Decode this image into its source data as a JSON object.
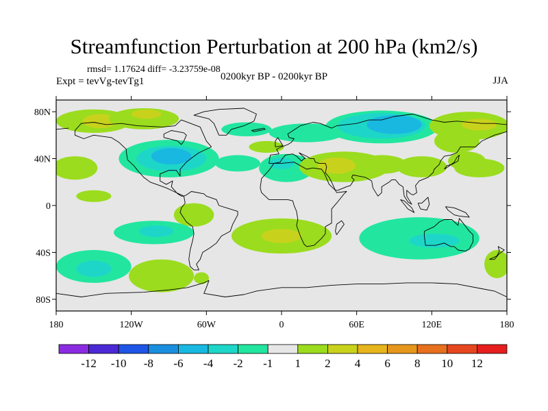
{
  "title": "Streamfunction Perturbation at 200 hPa (km2/s)",
  "stats_text": "rmsd= 1.17624 diff= -3.23759e-08",
  "expt_text": "Expt = tevVg-tevTg1",
  "period_text": "0200kyr BP - 0200kyr BP",
  "season_text": "JJA",
  "map": {
    "lon_range": [
      -180,
      180
    ],
    "lat_range": [
      -90,
      90
    ],
    "background_color": "#e6e6e6",
    "coast_color": "#000000"
  },
  "lat_ticks": [
    {
      "lat": 80,
      "label": "80N"
    },
    {
      "lat": 40,
      "label": "40N"
    },
    {
      "lat": 0,
      "label": "0"
    },
    {
      "lat": -40,
      "label": "40S"
    },
    {
      "lat": -80,
      "label": "80S"
    }
  ],
  "lon_ticks": [
    {
      "lon": -180,
      "label": "180"
    },
    {
      "lon": -120,
      "label": "120W"
    },
    {
      "lon": -60,
      "label": "60W"
    },
    {
      "lon": 0,
      "label": "0"
    },
    {
      "lon": 60,
      "label": "60E"
    },
    {
      "lon": 120,
      "label": "120E"
    },
    {
      "lon": 180,
      "label": "180"
    }
  ],
  "colorbar": {
    "colors": [
      "#8a2be2",
      "#4b28d6",
      "#1f55e6",
      "#1a8fe0",
      "#19b8e0",
      "#1ed6c8",
      "#22e6a0",
      "#e6e6e6",
      "#9bdc1e",
      "#c8d21c",
      "#e6b41c",
      "#e6961c",
      "#e6701e",
      "#e6461e",
      "#e61e1e"
    ],
    "labels": [
      "-12",
      "-10",
      "-8",
      "-6",
      "-4",
      "-2",
      "-1",
      "1",
      "2",
      "4",
      "6",
      "8",
      "10",
      "12"
    ]
  },
  "anomalies": [
    {
      "lon": -150,
      "lat": 72,
      "rx": 30,
      "ry": 10,
      "level": 2
    },
    {
      "lon": -145,
      "lat": 72,
      "rx": 14,
      "ry": 6,
      "level": 4
    },
    {
      "lon": -110,
      "lat": 74,
      "rx": 28,
      "ry": 9,
      "level": 2
    },
    {
      "lon": -108,
      "lat": 78,
      "rx": 12,
      "ry": 4,
      "level": 4
    },
    {
      "lon": -28,
      "lat": 65,
      "rx": 20,
      "ry": 6,
      "level": -1
    },
    {
      "lon": -12,
      "lat": 50,
      "rx": 14,
      "ry": 5,
      "level": 2
    },
    {
      "lon": 20,
      "lat": 62,
      "rx": 30,
      "ry": 8,
      "level": -1
    },
    {
      "lon": 80,
      "lat": 67,
      "rx": 45,
      "ry": 14,
      "level": -1
    },
    {
      "lon": 80,
      "lat": 68,
      "rx": 35,
      "ry": 11,
      "level": -2
    },
    {
      "lon": 90,
      "lat": 69,
      "rx": 22,
      "ry": 8,
      "level": -4
    },
    {
      "lon": 150,
      "lat": 68,
      "rx": 32,
      "ry": 12,
      "level": 2
    },
    {
      "lon": 158,
      "lat": 69,
      "rx": 14,
      "ry": 5,
      "level": 4
    },
    {
      "lon": 140,
      "lat": 55,
      "rx": 18,
      "ry": 10,
      "level": 2
    },
    {
      "lon": -90,
      "lat": 40,
      "rx": 40,
      "ry": 16,
      "level": -1
    },
    {
      "lon": -88,
      "lat": 40,
      "rx": 28,
      "ry": 11,
      "level": -2
    },
    {
      "lon": -88,
      "lat": 42,
      "rx": 16,
      "ry": 7,
      "level": -4
    },
    {
      "lon": -165,
      "lat": 32,
      "rx": 18,
      "ry": 10,
      "level": 2
    },
    {
      "lon": 4,
      "lat": 32,
      "rx": 22,
      "ry": 12,
      "level": -1
    },
    {
      "lon": 0,
      "lat": 36,
      "rx": 10,
      "ry": 5,
      "level": -2
    },
    {
      "lon": -35,
      "lat": 36,
      "rx": 18,
      "ry": 7,
      "level": -1
    },
    {
      "lon": 50,
      "lat": 33,
      "rx": 36,
      "ry": 13,
      "level": 2
    },
    {
      "lon": 44,
      "lat": 34,
      "rx": 15,
      "ry": 7,
      "level": 4
    },
    {
      "lon": 80,
      "lat": 35,
      "rx": 20,
      "ry": 8,
      "level": 2
    },
    {
      "lon": 112,
      "lat": 33,
      "rx": 20,
      "ry": 9,
      "level": 2
    },
    {
      "lon": 148,
      "lat": 38,
      "rx": 15,
      "ry": 8,
      "level": 2
    },
    {
      "lon": 158,
      "lat": 32,
      "rx": 20,
      "ry": 8,
      "level": 2
    },
    {
      "lon": -150,
      "lat": 8,
      "rx": 14,
      "ry": 5,
      "level": 2
    },
    {
      "lon": -70,
      "lat": -8,
      "rx": 16,
      "ry": 10,
      "level": 2
    },
    {
      "lon": -102,
      "lat": -23,
      "rx": 32,
      "ry": 10,
      "level": -1
    },
    {
      "lon": -100,
      "lat": -22,
      "rx": 14,
      "ry": 5,
      "level": -2
    },
    {
      "lon": 0,
      "lat": -26,
      "rx": 40,
      "ry": 15,
      "level": 2
    },
    {
      "lon": 0,
      "lat": -26,
      "rx": 16,
      "ry": 6,
      "level": 4
    },
    {
      "lon": 110,
      "lat": -28,
      "rx": 48,
      "ry": 18,
      "level": -1
    },
    {
      "lon": 122,
      "lat": -30,
      "rx": 20,
      "ry": 6,
      "level": -2
    },
    {
      "lon": 172,
      "lat": -50,
      "rx": 10,
      "ry": 12,
      "level": 2
    },
    {
      "lon": -150,
      "lat": -52,
      "rx": 30,
      "ry": 14,
      "level": -1
    },
    {
      "lon": -150,
      "lat": -54,
      "rx": 14,
      "ry": 7,
      "level": -2
    },
    {
      "lon": -96,
      "lat": -60,
      "rx": 26,
      "ry": 14,
      "level": 2
    },
    {
      "lon": -64,
      "lat": -62,
      "rx": 6,
      "ry": 5,
      "level": 2
    }
  ],
  "coastlines": [
    [
      [
        -165,
        64
      ],
      [
        -160,
        70
      ],
      [
        -150,
        71
      ],
      [
        -140,
        69
      ],
      [
        -128,
        70
      ],
      [
        -115,
        68
      ],
      [
        -95,
        67
      ],
      [
        -85,
        68
      ],
      [
        -80,
        73
      ],
      [
        -65,
        67
      ],
      [
        -60,
        55
      ],
      [
        -56,
        50
      ],
      [
        -66,
        45
      ],
      [
        -70,
        42
      ],
      [
        -76,
        37
      ],
      [
        -81,
        31
      ],
      [
        -81,
        25
      ],
      [
        -84,
        30
      ],
      [
        -90,
        30
      ],
      [
        -97,
        27
      ],
      [
        -97,
        21
      ],
      [
        -92,
        18
      ],
      [
        -87,
        21
      ],
      [
        -88,
        16
      ],
      [
        -83,
        10
      ],
      [
        -80,
        8
      ],
      [
        -78,
        8
      ],
      [
        -86,
        12
      ],
      [
        -92,
        15
      ],
      [
        -105,
        20
      ],
      [
        -110,
        24
      ],
      [
        -115,
        30
      ],
      [
        -118,
        34
      ],
      [
        -123,
        39
      ],
      [
        -124,
        46
      ],
      [
        -124,
        48
      ],
      [
        -130,
        54
      ],
      [
        -136,
        58
      ],
      [
        -150,
        60
      ],
      [
        -158,
        57
      ],
      [
        -165,
        60
      ],
      [
        -165,
        64
      ]
    ],
    [
      [
        -94,
        58
      ],
      [
        -90,
        57
      ],
      [
        -83,
        55
      ],
      [
        -80,
        52
      ],
      [
        -78,
        55
      ],
      [
        -76,
        60
      ],
      [
        -78,
        62
      ],
      [
        -88,
        64
      ],
      [
        -94,
        61
      ],
      [
        -94,
        58
      ]
    ],
    [
      [
        -78,
        8
      ],
      [
        -77,
        2
      ],
      [
        -80,
        -2
      ],
      [
        -81,
        -6
      ],
      [
        -76,
        -14
      ],
      [
        -71,
        -18
      ],
      [
        -70,
        -24
      ],
      [
        -71,
        -30
      ],
      [
        -73,
        -38
      ],
      [
        -74,
        -46
      ],
      [
        -73,
        -52
      ],
      [
        -70,
        -55
      ],
      [
        -66,
        -55
      ],
      [
        -68,
        -50
      ],
      [
        -65,
        -46
      ],
      [
        -63,
        -40
      ],
      [
        -57,
        -36
      ],
      [
        -52,
        -32
      ],
      [
        -48,
        -26
      ],
      [
        -41,
        -22
      ],
      [
        -39,
        -16
      ],
      [
        -35,
        -8
      ],
      [
        -35,
        -5
      ],
      [
        -44,
        -2
      ],
      [
        -50,
        0
      ],
      [
        -52,
        5
      ],
      [
        -60,
        8
      ],
      [
        -62,
        10
      ],
      [
        -72,
        12
      ],
      [
        -76,
        9
      ],
      [
        -78,
        8
      ]
    ],
    [
      [
        -50,
        60
      ],
      [
        -44,
        60
      ],
      [
        -40,
        65
      ],
      [
        -30,
        68
      ],
      [
        -22,
        72
      ],
      [
        -20,
        78
      ],
      [
        -30,
        83
      ],
      [
        -50,
        82
      ],
      [
        -62,
        80
      ],
      [
        -70,
        77
      ],
      [
        -58,
        74
      ],
      [
        -54,
        70
      ],
      [
        -52,
        65
      ],
      [
        -50,
        60
      ]
    ],
    [
      [
        -17,
        15
      ],
      [
        -16,
        11
      ],
      [
        -10,
        5
      ],
      [
        -5,
        5
      ],
      [
        5,
        5
      ],
      [
        9,
        4
      ],
      [
        10,
        0
      ],
      [
        12,
        -5
      ],
      [
        13,
        -12
      ],
      [
        12,
        -17
      ],
      [
        15,
        -26
      ],
      [
        18,
        -33
      ],
      [
        20,
        -35
      ],
      [
        26,
        -34
      ],
      [
        32,
        -28
      ],
      [
        35,
        -24
      ],
      [
        35,
        -18
      ],
      [
        40,
        -15
      ],
      [
        40,
        -10
      ],
      [
        40,
        -3
      ],
      [
        44,
        2
      ],
      [
        50,
        10
      ],
      [
        52,
        12
      ],
      [
        44,
        11
      ],
      [
        43,
        13
      ],
      [
        38,
        18
      ],
      [
        34,
        28
      ],
      [
        32,
        31
      ],
      [
        25,
        32
      ],
      [
        20,
        31
      ],
      [
        10,
        37
      ],
      [
        0,
        36
      ],
      [
        -6,
        36
      ],
      [
        -10,
        30
      ],
      [
        -16,
        23
      ],
      [
        -17,
        15
      ]
    ],
    [
      [
        44,
        -25
      ],
      [
        50,
        -16
      ],
      [
        48,
        -13
      ],
      [
        44,
        -16
      ],
      [
        43,
        -22
      ],
      [
        44,
        -25
      ]
    ],
    [
      [
        -10,
        36
      ],
      [
        -9,
        43
      ],
      [
        -2,
        44
      ],
      [
        -4,
        48
      ],
      [
        0,
        50
      ],
      [
        5,
        52
      ],
      [
        8,
        54
      ],
      [
        10,
        57
      ],
      [
        6,
        58
      ],
      [
        5,
        61
      ],
      [
        15,
        68
      ],
      [
        25,
        71
      ],
      [
        31,
        70
      ],
      [
        40,
        66
      ],
      [
        44,
        68
      ],
      [
        60,
        70
      ],
      [
        70,
        73
      ],
      [
        80,
        73
      ],
      [
        90,
        76
      ],
      [
        105,
        78
      ],
      [
        120,
        73
      ],
      [
        130,
        71
      ],
      [
        140,
        72
      ],
      [
        160,
        70
      ],
      [
        170,
        70
      ],
      [
        180,
        69
      ]
    ],
    [
      [
        -170,
        66
      ],
      [
        -180,
        65
      ]
    ],
    [
      [
        180,
        63
      ],
      [
        170,
        60
      ],
      [
        160,
        55
      ],
      [
        155,
        50
      ],
      [
        143,
        50
      ],
      [
        140,
        45
      ],
      [
        135,
        43
      ],
      [
        130,
        42
      ],
      [
        127,
        38
      ],
      [
        126,
        35
      ],
      [
        122,
        31
      ],
      [
        121,
        28
      ],
      [
        117,
        24
      ],
      [
        110,
        21
      ],
      [
        107,
        17
      ],
      [
        108,
        11
      ],
      [
        105,
        9
      ],
      [
        103,
        10
      ],
      [
        100,
        13
      ],
      [
        100,
        8
      ],
      [
        104,
        1
      ],
      [
        101,
        3
      ],
      [
        98,
        8
      ],
      [
        97,
        16
      ],
      [
        94,
        18
      ],
      [
        91,
        22
      ],
      [
        88,
        22
      ],
      [
        86,
        20
      ],
      [
        80,
        16
      ],
      [
        80,
        11
      ],
      [
        77,
        8
      ],
      [
        73,
        15
      ],
      [
        72,
        21
      ],
      [
        67,
        24
      ],
      [
        62,
        25
      ],
      [
        57,
        26
      ],
      [
        56,
        24
      ],
      [
        58,
        22
      ],
      [
        55,
        17
      ],
      [
        52,
        16
      ],
      [
        45,
        13
      ],
      [
        43,
        13
      ],
      [
        40,
        20
      ],
      [
        38,
        24
      ],
      [
        35,
        28
      ],
      [
        36,
        33
      ],
      [
        35,
        36
      ],
      [
        30,
        36
      ],
      [
        27,
        37
      ],
      [
        26,
        40
      ],
      [
        23,
        40
      ],
      [
        20,
        42
      ],
      [
        14,
        45
      ],
      [
        19,
        40
      ],
      [
        18,
        40
      ],
      [
        16,
        38
      ],
      [
        12,
        42
      ],
      [
        9,
        44
      ],
      [
        3,
        43
      ],
      [
        0,
        39
      ],
      [
        -1,
        37
      ],
      [
        -6,
        36
      ],
      [
        -10,
        36
      ]
    ],
    [
      [
        -5,
        50
      ],
      [
        -5,
        55
      ],
      [
        -3,
        58
      ],
      [
        0,
        53
      ],
      [
        1,
        51
      ],
      [
        -5,
        50
      ]
    ],
    [
      [
        -24,
        64
      ],
      [
        -14,
        66
      ],
      [
        -13,
        65
      ],
      [
        -22,
        63
      ],
      [
        -24,
        64
      ]
    ],
    [
      [
        130,
        31
      ],
      [
        132,
        34
      ],
      [
        136,
        35
      ],
      [
        141,
        38
      ],
      [
        142,
        43
      ],
      [
        140,
        41
      ],
      [
        138,
        37
      ],
      [
        133,
        33
      ],
      [
        130,
        31
      ]
    ],
    [
      [
        114,
        -22
      ],
      [
        114,
        -26
      ],
      [
        115,
        -34
      ],
      [
        123,
        -34
      ],
      [
        130,
        -32
      ],
      [
        135,
        -35
      ],
      [
        138,
        -35
      ],
      [
        141,
        -38
      ],
      [
        147,
        -39
      ],
      [
        150,
        -37
      ],
      [
        153,
        -31
      ],
      [
        153,
        -25
      ],
      [
        150,
        -22
      ],
      [
        145,
        -15
      ],
      [
        142,
        -11
      ],
      [
        141,
        -17
      ],
      [
        136,
        -12
      ],
      [
        130,
        -12
      ],
      [
        126,
        -14
      ],
      [
        122,
        -18
      ],
      [
        114,
        -22
      ]
    ],
    [
      [
        166,
        -46
      ],
      [
        170,
        -46
      ],
      [
        174,
        -41
      ],
      [
        178,
        -38
      ],
      [
        173,
        -35
      ],
      [
        174,
        -39
      ],
      [
        172,
        -43
      ],
      [
        166,
        -46
      ]
    ],
    [
      [
        95,
        5
      ],
      [
        98,
        4
      ],
      [
        104,
        -2
      ],
      [
        106,
        -6
      ],
      [
        101,
        -3
      ],
      [
        95,
        5
      ]
    ],
    [
      [
        109,
        2
      ],
      [
        111,
        -3
      ],
      [
        116,
        -4
      ],
      [
        118,
        1
      ],
      [
        117,
        7
      ],
      [
        112,
        2
      ],
      [
        109,
        2
      ]
    ],
    [
      [
        131,
        -1
      ],
      [
        138,
        -2
      ],
      [
        147,
        -6
      ],
      [
        150,
        -10
      ],
      [
        142,
        -9
      ],
      [
        138,
        -8
      ],
      [
        133,
        -4
      ],
      [
        131,
        -1
      ]
    ],
    [
      [
        -180,
        -75
      ],
      [
        -160,
        -78
      ],
      [
        -140,
        -75
      ],
      [
        -110,
        -74
      ],
      [
        -90,
        -72
      ],
      [
        -75,
        -70
      ],
      [
        -62,
        -66
      ],
      [
        -58,
        -64
      ],
      [
        -60,
        -70
      ],
      [
        -62,
        -75
      ],
      [
        -45,
        -78
      ],
      [
        -30,
        -76
      ],
      [
        -20,
        -73
      ],
      [
        0,
        -70
      ],
      [
        20,
        -70
      ],
      [
        40,
        -68
      ],
      [
        60,
        -67
      ],
      [
        80,
        -67
      ],
      [
        100,
        -66
      ],
      [
        120,
        -66
      ],
      [
        140,
        -67
      ],
      [
        160,
        -71
      ],
      [
        170,
        -73
      ],
      [
        180,
        -78
      ]
    ]
  ]
}
